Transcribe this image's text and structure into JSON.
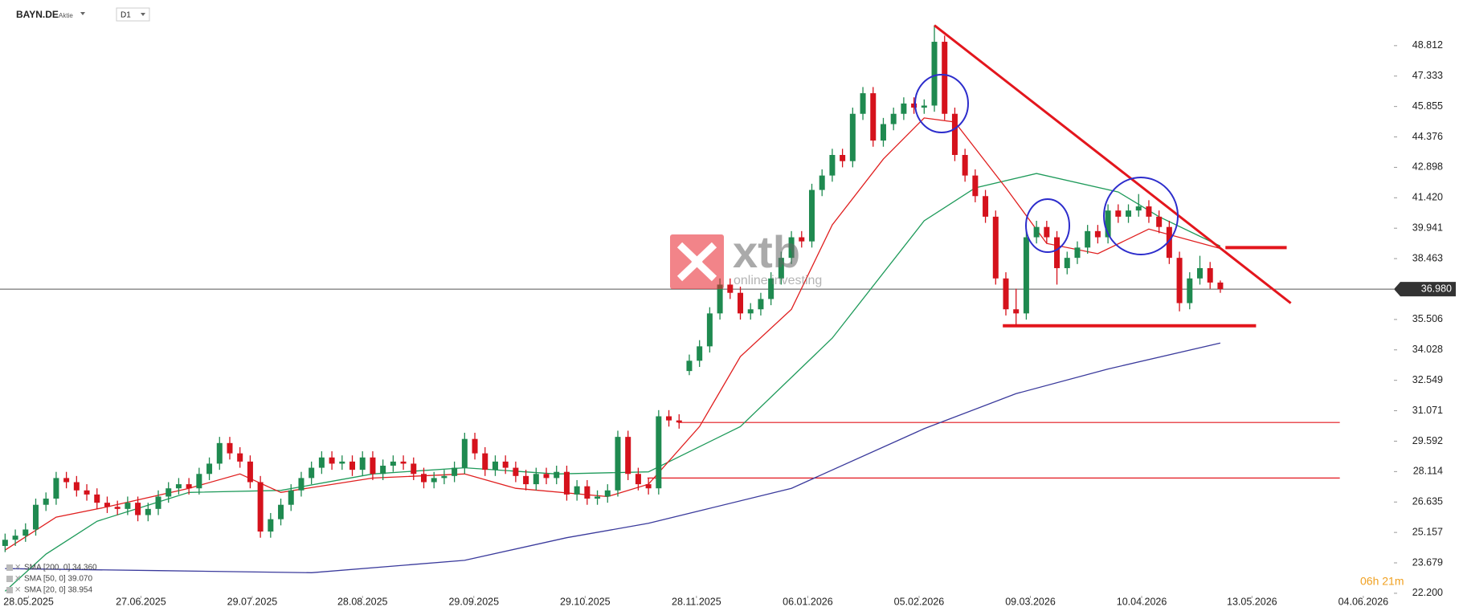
{
  "header": {
    "symbol": "BAYN.DE",
    "kind": "Aktie",
    "interval": "D1"
  },
  "chart_data": {
    "type": "candlestick",
    "x": [
      0,
      1,
      2,
      3,
      4,
      5,
      6,
      7,
      8,
      9,
      10,
      11,
      12,
      13,
      14,
      15,
      16,
      17,
      18,
      19,
      20,
      21,
      22,
      23,
      24,
      25,
      26,
      27,
      28,
      29,
      30,
      31,
      32,
      33,
      34,
      35,
      36,
      37,
      38,
      39,
      40,
      41,
      42,
      43,
      44,
      45,
      46,
      47,
      48,
      49,
      50,
      51,
      52,
      53,
      54,
      55,
      56,
      57,
      58,
      59,
      60,
      61,
      62,
      63,
      64,
      65,
      66,
      67,
      68,
      69,
      70,
      71,
      72,
      73,
      74,
      75,
      76,
      77,
      78,
      79,
      80,
      81,
      82,
      83,
      84,
      85,
      86,
      87,
      88,
      89,
      90,
      91,
      92,
      93,
      94,
      95,
      96,
      97,
      98,
      99,
      100,
      101,
      102,
      103,
      104,
      105,
      106,
      107,
      108,
      109,
      110,
      111,
      112,
      113,
      114,
      115,
      116,
      117,
      118,
      119
    ],
    "open": [
      24.5,
      24.8,
      25.0,
      25.3,
      26.5,
      26.8,
      27.8,
      27.6,
      27.2,
      27.0,
      26.6,
      26.4,
      26.3,
      26.6,
      26.0,
      26.3,
      26.9,
      27.3,
      27.5,
      27.3,
      28.0,
      28.5,
      29.5,
      29.0,
      28.6,
      27.6,
      25.2,
      25.8,
      26.5,
      27.2,
      27.8,
      28.3,
      28.8,
      28.5,
      28.6,
      28.2,
      28.8,
      28.0,
      28.4,
      28.6,
      28.5,
      28.0,
      27.6,
      27.8,
      27.9,
      28.3,
      29.7,
      29.0,
      28.2,
      28.6,
      28.3,
      27.9,
      27.5,
      28.0,
      27.8,
      28.1,
      27.0,
      27.4,
      26.8,
      26.9,
      27.2,
      29.8,
      28.0,
      27.5,
      27.3,
      30.8,
      30.6,
      33.0,
      33.5,
      34.2,
      35.8,
      37.2,
      36.8,
      35.8,
      36.0,
      36.5,
      37.5,
      38.5,
      39.5,
      39.3,
      41.8,
      42.5,
      43.5,
      43.2,
      45.5,
      46.5,
      44.2,
      45.0,
      45.5,
      46.0,
      45.8,
      45.9,
      49.0,
      45.5,
      43.5,
      42.5,
      41.5,
      40.5,
      37.5,
      36.0,
      35.8,
      39.5,
      40.0,
      39.5,
      38.0,
      38.5,
      39.0,
      39.8,
      39.5,
      40.8,
      40.5,
      40.8,
      41.0,
      40.5,
      40.0,
      38.5,
      36.3,
      37.5,
      38.0,
      37.3
    ],
    "high": [
      25.1,
      25.3,
      25.6,
      26.8,
      27.1,
      28.1,
      28.1,
      27.9,
      27.5,
      27.3,
      26.9,
      26.7,
      26.9,
      26.9,
      26.6,
      27.2,
      27.6,
      27.8,
      27.8,
      28.3,
      28.8,
      29.8,
      29.8,
      29.3,
      28.9,
      27.9,
      26.1,
      26.8,
      27.5,
      28.1,
      28.6,
      29.1,
      29.1,
      28.9,
      28.9,
      29.1,
      29.1,
      28.7,
      28.9,
      28.9,
      28.8,
      28.3,
      28.1,
      28.2,
      28.6,
      30.0,
      30.0,
      29.3,
      28.9,
      28.9,
      28.6,
      28.2,
      28.3,
      28.3,
      28.4,
      28.4,
      27.7,
      27.7,
      27.2,
      27.5,
      30.1,
      30.1,
      28.3,
      27.8,
      31.1,
      31.1,
      30.9,
      33.8,
      34.5,
      36.1,
      37.5,
      37.5,
      37.1,
      36.3,
      36.8,
      37.8,
      38.8,
      39.8,
      39.8,
      42.1,
      42.8,
      43.8,
      43.8,
      45.8,
      46.8,
      46.8,
      45.3,
      45.8,
      46.3,
      46.3,
      46.2,
      49.8,
      49.3,
      45.8,
      43.8,
      42.8,
      41.8,
      40.8,
      37.8,
      37.0,
      39.8,
      40.3,
      40.3,
      39.8,
      38.8,
      39.3,
      40.1,
      40.1,
      41.1,
      41.1,
      41.1,
      41.6,
      41.3,
      40.8,
      40.3,
      38.8,
      37.8,
      38.6,
      38.3,
      37.4
    ],
    "low": [
      24.2,
      24.5,
      24.7,
      25.0,
      26.2,
      26.5,
      27.3,
      26.9,
      26.7,
      26.3,
      26.1,
      26.0,
      26.0,
      25.7,
      25.7,
      26.0,
      26.6,
      27.0,
      27.0,
      27.0,
      27.7,
      28.2,
      28.7,
      28.3,
      27.3,
      24.9,
      24.9,
      25.5,
      26.2,
      26.9,
      27.5,
      28.0,
      28.2,
      28.2,
      27.9,
      27.9,
      27.7,
      27.7,
      28.1,
      28.2,
      27.7,
      27.3,
      27.3,
      27.5,
      27.6,
      28.0,
      28.7,
      27.9,
      27.9,
      28.0,
      27.6,
      27.2,
      27.2,
      27.5,
      27.5,
      26.7,
      26.7,
      26.5,
      26.5,
      26.6,
      26.9,
      27.7,
      27.2,
      27.0,
      27.0,
      30.3,
      30.2,
      32.8,
      33.2,
      33.9,
      35.5,
      36.5,
      35.5,
      35.5,
      35.7,
      36.2,
      37.2,
      38.2,
      39.0,
      39.0,
      41.5,
      42.2,
      42.9,
      42.9,
      45.2,
      43.9,
      43.9,
      44.7,
      45.2,
      45.5,
      45.5,
      45.6,
      45.2,
      43.2,
      42.2,
      41.2,
      40.2,
      37.2,
      35.7,
      35.2,
      35.5,
      39.2,
      39.2,
      37.2,
      37.7,
      38.2,
      38.7,
      39.2,
      39.2,
      40.2,
      40.2,
      40.5,
      40.2,
      39.7,
      38.2,
      35.9,
      36.0,
      37.2,
      37.0,
      36.8
    ],
    "close": [
      24.8,
      25.0,
      25.3,
      26.5,
      26.8,
      27.8,
      27.6,
      27.2,
      27.0,
      26.6,
      26.4,
      26.3,
      26.6,
      26.0,
      26.3,
      26.9,
      27.3,
      27.5,
      27.3,
      28.0,
      28.5,
      29.5,
      29.0,
      28.6,
      27.6,
      25.2,
      25.8,
      26.5,
      27.2,
      27.8,
      28.3,
      28.8,
      28.5,
      28.6,
      28.2,
      28.8,
      28.0,
      28.4,
      28.6,
      28.5,
      28.0,
      27.6,
      27.8,
      27.9,
      28.3,
      29.7,
      29.0,
      28.2,
      28.6,
      28.3,
      27.9,
      27.5,
      28.0,
      27.8,
      28.1,
      27.0,
      27.4,
      26.8,
      26.9,
      27.2,
      29.8,
      28.0,
      27.5,
      27.3,
      30.8,
      30.6,
      30.5,
      33.5,
      34.2,
      35.8,
      37.2,
      36.8,
      35.8,
      36.0,
      36.5,
      37.5,
      38.5,
      39.5,
      39.3,
      41.8,
      42.5,
      43.5,
      43.2,
      45.5,
      46.5,
      44.2,
      45.0,
      45.5,
      46.0,
      45.8,
      45.9,
      49.0,
      45.5,
      43.5,
      42.5,
      41.5,
      40.5,
      37.5,
      36.0,
      35.8,
      39.5,
      40.0,
      39.5,
      38.0,
      38.5,
      39.0,
      39.8,
      39.5,
      40.8,
      40.5,
      40.8,
      41.0,
      40.5,
      40.0,
      38.5,
      36.3,
      37.5,
      38.0,
      37.3,
      36.98
    ],
    "up_color": "#1f8a50",
    "down_color": "#d5121c",
    "series": [
      {
        "name": "SMA [200, 0] 34.360",
        "color": "#3a3a9c",
        "x": [
          0,
          15,
          30,
          45,
          55,
          63,
          77,
          90,
          99,
          108,
          119
        ],
        "values": [
          23.4,
          23.3,
          23.2,
          23.8,
          24.9,
          25.6,
          27.3,
          30.2,
          31.9,
          33.1,
          34.36
        ]
      },
      {
        "name": "SMA [50, 0] 39.070",
        "color": "#1e9a5a",
        "x": [
          0,
          4,
          9,
          18,
          27,
          36,
          45,
          54,
          63,
          72,
          81,
          90,
          95,
          101,
          109,
          113,
          119
        ],
        "values": [
          22.3,
          24.1,
          25.7,
          27.1,
          27.2,
          28.0,
          28.3,
          28.0,
          28.1,
          30.3,
          34.6,
          40.3,
          41.9,
          42.6,
          41.7,
          40.5,
          39.07
        ]
      },
      {
        "name": "SMA [20, 0] 38.954",
        "color": "#e01f1f",
        "x": [
          0,
          5,
          10,
          18,
          23,
          27,
          36,
          45,
          50,
          59,
          63,
          68,
          72,
          77,
          81,
          86,
          90,
          93,
          98,
          102,
          107,
          112,
          119
        ],
        "values": [
          24.3,
          25.9,
          26.4,
          27.3,
          28.0,
          27.1,
          27.8,
          28.0,
          27.3,
          26.9,
          27.5,
          30.3,
          33.7,
          36.0,
          40.1,
          43.3,
          45.3,
          45.1,
          41.9,
          39.2,
          38.7,
          39.9,
          38.954
        ]
      }
    ],
    "levels": [
      {
        "value": 30.5,
        "from": 65.9,
        "to": 130.7
      },
      {
        "value": 27.8,
        "from": 62.9,
        "to": 130.7
      },
      {
        "value": 35.2,
        "from": 97.7,
        "to": 122.5
      },
      {
        "value": 39.0,
        "from": 119.5,
        "to": 125.5
      }
    ],
    "trendline": {
      "x": [
        91.0,
        125.9
      ],
      "y": [
        49.8,
        36.3
      ]
    },
    "last_price": {
      "value": 36.98,
      "label": "36.980"
    },
    "xlim": [
      -0.5,
      136
    ],
    "ylim": [
      22.08,
      51.03
    ],
    "xticks": [
      {
        "value": 2.3,
        "label": "28.05.2025"
      },
      {
        "value": 13.3,
        "label": "27.06.2025"
      },
      {
        "value": 24.2,
        "label": "29.07.2025"
      },
      {
        "value": 35.0,
        "label": "28.08.2025"
      },
      {
        "value": 45.9,
        "label": "29.09.2025"
      },
      {
        "value": 56.8,
        "label": "29.10.2025"
      },
      {
        "value": 67.7,
        "label": "28.11.2025"
      },
      {
        "value": 78.6,
        "label": "06.01.2026"
      },
      {
        "value": 89.5,
        "label": "05.02.2026"
      },
      {
        "value": 100.4,
        "label": "09.03.2026"
      },
      {
        "value": 111.3,
        "label": "10.04.2026"
      },
      {
        "value": 122.1,
        "label": "13.05.2026"
      },
      {
        "value": 133.0,
        "label": "04.06.2026"
      }
    ],
    "yticks": [
      {
        "value": 22.2,
        "label": "22.200"
      },
      23.679,
      25.157,
      26.635,
      28.114,
      29.592,
      31.071,
      32.549,
      34.028,
      35.506,
      38.463,
      39.941,
      {
        "value": 41.42,
        "label": "41.420"
      },
      42.898,
      44.376,
      45.855,
      47.333,
      48.812
    ]
  },
  "watermark": {
    "brand": "xtb",
    "tagline": "online investing"
  },
  "timer": "06h 21m"
}
